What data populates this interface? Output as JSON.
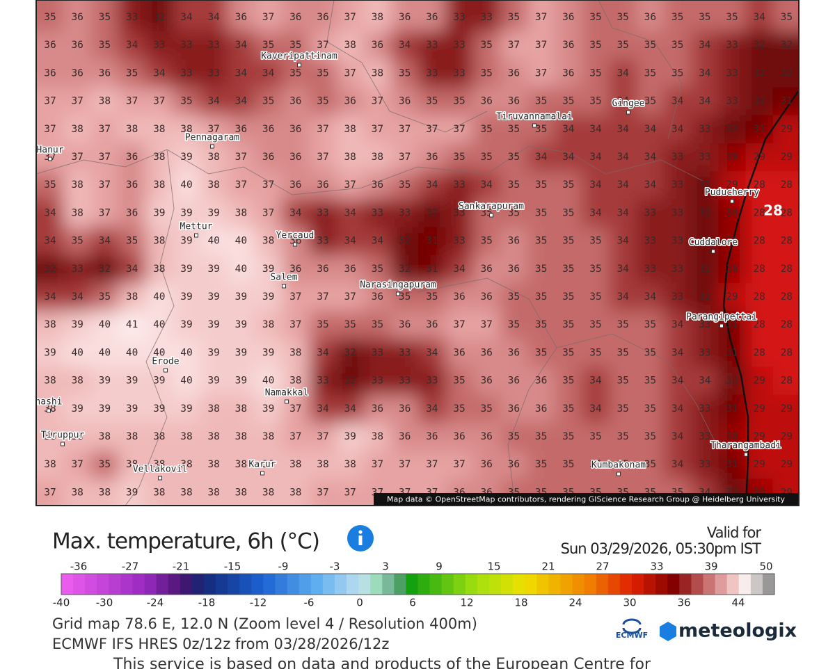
{
  "map": {
    "rows": [
      [
        35,
        36,
        35,
        33,
        32,
        34,
        34,
        36,
        37,
        36,
        36,
        37,
        38,
        36,
        36,
        33,
        33,
        35,
        37,
        36,
        35,
        35,
        36,
        35,
        35,
        35,
        34,
        35
      ],
      [
        36,
        36,
        35,
        34,
        33,
        33,
        33,
        34,
        35,
        35,
        37,
        38,
        36,
        34,
        33,
        33,
        35,
        37,
        37,
        36,
        35,
        35,
        35,
        35,
        34,
        33,
        32,
        32
      ],
      [
        36,
        36,
        36,
        35,
        34,
        33,
        33,
        34,
        34,
        35,
        35,
        37,
        38,
        35,
        33,
        33,
        35,
        36,
        37,
        36,
        35,
        34,
        35,
        35,
        34,
        33,
        32,
        32
      ],
      [
        37,
        37,
        38,
        37,
        37,
        35,
        34,
        34,
        35,
        36,
        35,
        36,
        37,
        36,
        35,
        35,
        36,
        36,
        35,
        35,
        35,
        34,
        35,
        34,
        34,
        33,
        32,
        31
      ],
      [
        37,
        38,
        37,
        38,
        38,
        38,
        37,
        36,
        36,
        36,
        37,
        38,
        37,
        37,
        37,
        37,
        35,
        35,
        35,
        34,
        34,
        34,
        34,
        34,
        33,
        32,
        31,
        29
      ],
      [
        37,
        37,
        37,
        36,
        38,
        39,
        38,
        37,
        36,
        36,
        37,
        38,
        38,
        37,
        36,
        35,
        35,
        35,
        34,
        34,
        34,
        34,
        34,
        33,
        33,
        30,
        29,
        29
      ],
      [
        35,
        38,
        37,
        36,
        38,
        40,
        38,
        37,
        37,
        36,
        36,
        37,
        36,
        35,
        34,
        33,
        34,
        35,
        35,
        35,
        34,
        34,
        34,
        33,
        32,
        29,
        28,
        28
      ],
      [
        34,
        38,
        37,
        36,
        39,
        39,
        39,
        38,
        37,
        34,
        33,
        34,
        33,
        33,
        32,
        33,
        35,
        35,
        35,
        35,
        34,
        34,
        33,
        33,
        32,
        30,
        28,
        28
      ],
      [
        34,
        35,
        34,
        35,
        38,
        39,
        40,
        40,
        38,
        36,
        33,
        34,
        34,
        32,
        31,
        33,
        35,
        36,
        35,
        35,
        35,
        34,
        33,
        33,
        32,
        30,
        28,
        28
      ],
      [
        32,
        33,
        32,
        34,
        38,
        39,
        39,
        40,
        39,
        36,
        36,
        36,
        35,
        32,
        31,
        34,
        36,
        36,
        35,
        35,
        35,
        34,
        33,
        33,
        32,
        30,
        28,
        28
      ],
      [
        34,
        34,
        35,
        38,
        40,
        39,
        39,
        39,
        39,
        37,
        37,
        37,
        36,
        35,
        35,
        36,
        36,
        35,
        35,
        35,
        35,
        34,
        34,
        33,
        32,
        29,
        28,
        28
      ],
      [
        38,
        39,
        40,
        41,
        40,
        39,
        39,
        39,
        38,
        37,
        35,
        35,
        35,
        36,
        36,
        37,
        37,
        35,
        35,
        35,
        35,
        35,
        35,
        34,
        33,
        31,
        28,
        28
      ],
      [
        39,
        40,
        40,
        40,
        40,
        40,
        39,
        39,
        39,
        38,
        34,
        32,
        33,
        33,
        34,
        36,
        36,
        36,
        35,
        35,
        35,
        35,
        35,
        34,
        33,
        31,
        28,
        28
      ],
      [
        38,
        38,
        39,
        39,
        39,
        40,
        39,
        39,
        40,
        38,
        33,
        32,
        33,
        33,
        33,
        35,
        36,
        36,
        36,
        35,
        34,
        35,
        35,
        34,
        34,
        32,
        29,
        28
      ],
      [
        38,
        39,
        39,
        39,
        39,
        39,
        38,
        38,
        39,
        37,
        34,
        34,
        36,
        36,
        34,
        35,
        35,
        36,
        36,
        35,
        34,
        35,
        35,
        34,
        33,
        31,
        29,
        29
      ],
      [
        38,
        38,
        38,
        38,
        38,
        38,
        38,
        38,
        38,
        37,
        37,
        39,
        38,
        36,
        36,
        36,
        36,
        35,
        35,
        35,
        35,
        35,
        35,
        34,
        33,
        30,
        29,
        29
      ],
      [
        38,
        37,
        35,
        38,
        38,
        38,
        38,
        38,
        38,
        38,
        38,
        38,
        37,
        37,
        37,
        37,
        36,
        36,
        35,
        35,
        35,
        35,
        35,
        34,
        33,
        31,
        29,
        29
      ],
      [
        37,
        38,
        38,
        39,
        38,
        38,
        38,
        38,
        38,
        38,
        37,
        37,
        37,
        37,
        37,
        36,
        36,
        35,
        35,
        35,
        35,
        35,
        35,
        35,
        34,
        32,
        30,
        29
      ]
    ],
    "towns": [
      "Kaveripattinam",
      "Tiruvannamalai",
      "Gingee",
      "Pennagaram",
      "Hanur",
      "Puducherry",
      "Sankarapuram",
      "Mettur",
      "Yercaud",
      "Cuddalore",
      "Salem",
      "Narasingapuram",
      "Parangipettai",
      "Erode",
      "Namakkal",
      "nashi",
      "Tiruppur",
      "Tharangambadi",
      "Karur",
      "Vellakovil",
      "Kumbakonam"
    ],
    "marker_label": 28,
    "attribution": "Map data © OpenStreetMap contributors, rendering GIScience Research Group @ Heidelberg University"
  },
  "legend": {
    "title": "Max. temperature, 6h (°C)",
    "valid_label": "Valid for",
    "valid_time": "Sun 03/29/2026, 05:30pm IST",
    "top_labels": [
      -36,
      -27,
      -21,
      -15,
      -9,
      -3,
      3,
      9,
      15,
      21,
      27,
      33,
      39,
      50
    ],
    "bottom_labels": [
      -40,
      -30,
      -24,
      -18,
      -12,
      -6,
      0,
      6,
      12,
      18,
      24,
      30,
      36,
      44
    ]
  },
  "footer": {
    "grid": "Grid map 78.6 E, 12.0 N (Zoom level 4 / Resolution 400m)",
    "model": "ECMWF IFS HRES 0z/12z from 03/28/2026/12z",
    "notice": "This service is based on data and products of the European Centre for",
    "ecmwf": "ECMWF",
    "brand": "meteologix"
  }
}
